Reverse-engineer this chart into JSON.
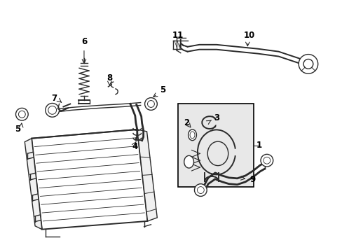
{
  "bg_color": "#ffffff",
  "line_color": "#2a2a2a",
  "inset_bg": "#e8e8e8",
  "fig_width": 4.89,
  "fig_height": 3.6,
  "dpi": 100
}
